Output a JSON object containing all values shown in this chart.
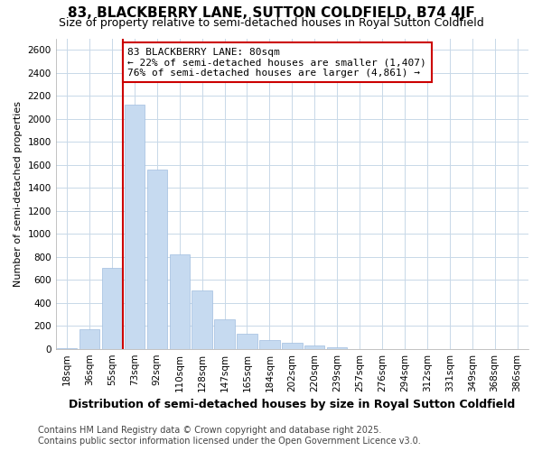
{
  "title": "83, BLACKBERRY LANE, SUTTON COLDFIELD, B74 4JF",
  "subtitle": "Size of property relative to semi-detached houses in Royal Sutton Coldfield",
  "xlabel": "Distribution of semi-detached houses by size in Royal Sutton Coldfield",
  "ylabel": "Number of semi-detached properties",
  "categories": [
    "18sqm",
    "36sqm",
    "55sqm",
    "73sqm",
    "92sqm",
    "110sqm",
    "128sqm",
    "147sqm",
    "165sqm",
    "184sqm",
    "202sqm",
    "220sqm",
    "239sqm",
    "257sqm",
    "276sqm",
    "294sqm",
    "312sqm",
    "331sqm",
    "349sqm",
    "368sqm",
    "386sqm"
  ],
  "values": [
    5,
    170,
    700,
    2120,
    1560,
    820,
    510,
    255,
    130,
    75,
    50,
    25,
    10,
    0,
    0,
    0,
    0,
    0,
    0,
    0,
    0
  ],
  "bar_color": "#c6daf0",
  "bar_edge_color": "#a0bee0",
  "red_line_index": 3,
  "annotation_title": "83 BLACKBERRY LANE: 80sqm",
  "annotation_line1": "← 22% of semi-detached houses are smaller (1,407)",
  "annotation_line2": "76% of semi-detached houses are larger (4,861) →",
  "annotation_box_color": "#ffffff",
  "annotation_box_edge": "#cc0000",
  "red_line_color": "#cc0000",
  "ylim": [
    0,
    2700
  ],
  "yticks": [
    0,
    200,
    400,
    600,
    800,
    1000,
    1200,
    1400,
    1600,
    1800,
    2000,
    2200,
    2400,
    2600
  ],
  "footer1": "Contains HM Land Registry data © Crown copyright and database right 2025.",
  "footer2": "Contains public sector information licensed under the Open Government Licence v3.0.",
  "background_color": "#ffffff",
  "grid_color": "#c8d8e8",
  "title_fontsize": 11,
  "subtitle_fontsize": 9,
  "xlabel_fontsize": 9,
  "ylabel_fontsize": 8,
  "tick_fontsize": 7.5,
  "footer_fontsize": 7,
  "ann_fontsize": 8
}
